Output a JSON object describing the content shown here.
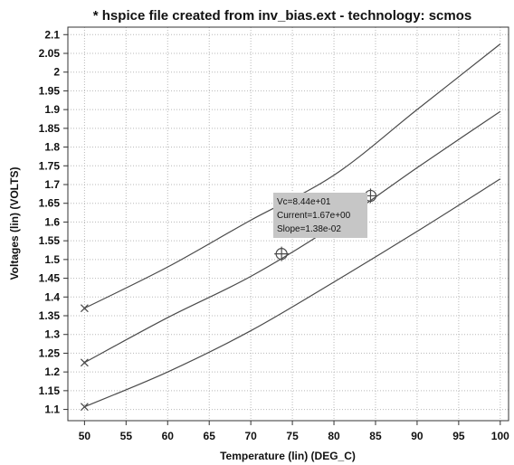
{
  "chart_data": {
    "type": "line",
    "title": "* hspice file created from inv_bias.ext - technology: scmos",
    "xlabel": "Temperature (lin) (DEG_C)",
    "ylabel": "Voltages (lin) (VOLTS)",
    "xlim": [
      48,
      101
    ],
    "ylim": [
      1.07,
      2.12
    ],
    "xticks": [
      50,
      55,
      60,
      65,
      70,
      75,
      80,
      85,
      90,
      95,
      100
    ],
    "yticks": [
      1.1,
      1.15,
      1.2,
      1.25,
      1.3,
      1.35,
      1.4,
      1.45,
      1.5,
      1.55,
      1.6,
      1.65,
      1.7,
      1.75,
      1.8,
      1.85,
      1.9,
      1.95,
      2,
      2.05,
      2.1
    ],
    "xtick_labels": [
      "50",
      "55",
      "60",
      "65",
      "70",
      "75",
      "80",
      "85",
      "90",
      "95",
      "100"
    ],
    "ytick_labels": [
      "1.1",
      "1.15",
      "1.2",
      "1.25",
      "1.3",
      "1.35",
      "1.4",
      "1.45",
      "1.5",
      "1.55",
      "1.6",
      "1.65",
      "1.7",
      "1.75",
      "1.8",
      "1.85",
      "1.9",
      "1.95",
      "2",
      "2.05",
      "2.1"
    ],
    "grid": true,
    "series": [
      {
        "x": [
          50,
          60,
          70,
          80,
          90,
          100
        ],
        "y": [
          1.37,
          1.48,
          1.605,
          1.725,
          1.9,
          2.075
        ]
      },
      {
        "x": [
          50,
          60,
          70,
          80,
          90,
          100
        ],
        "y": [
          1.225,
          1.345,
          1.455,
          1.59,
          1.745,
          1.895
        ]
      },
      {
        "x": [
          50,
          60,
          70,
          80,
          90,
          100
        ],
        "y": [
          1.107,
          1.2,
          1.31,
          1.44,
          1.575,
          1.715
        ]
      }
    ],
    "markers": [
      {
        "x": 50,
        "y": 1.37,
        "shape": "x"
      },
      {
        "x": 50,
        "y": 1.225,
        "shape": "x"
      },
      {
        "x": 50,
        "y": 1.107,
        "shape": "x"
      },
      {
        "x": 73.7,
        "y": 1.515,
        "shape": "crosshair-circle"
      },
      {
        "x": 84.4,
        "y": 1.67,
        "shape": "crosshair-circle"
      }
    ],
    "annotation": {
      "lines": [
        "Vc=8.44e+01",
        "Current=1.67e+00",
        "Slope=1.38e-02"
      ]
    }
  },
  "colors": {
    "background": "#ffffff",
    "axes": "#333333",
    "grid": "#b8b8b8",
    "line": "#4a4a4a",
    "tooltip_bg": "#c6c6c6"
  }
}
